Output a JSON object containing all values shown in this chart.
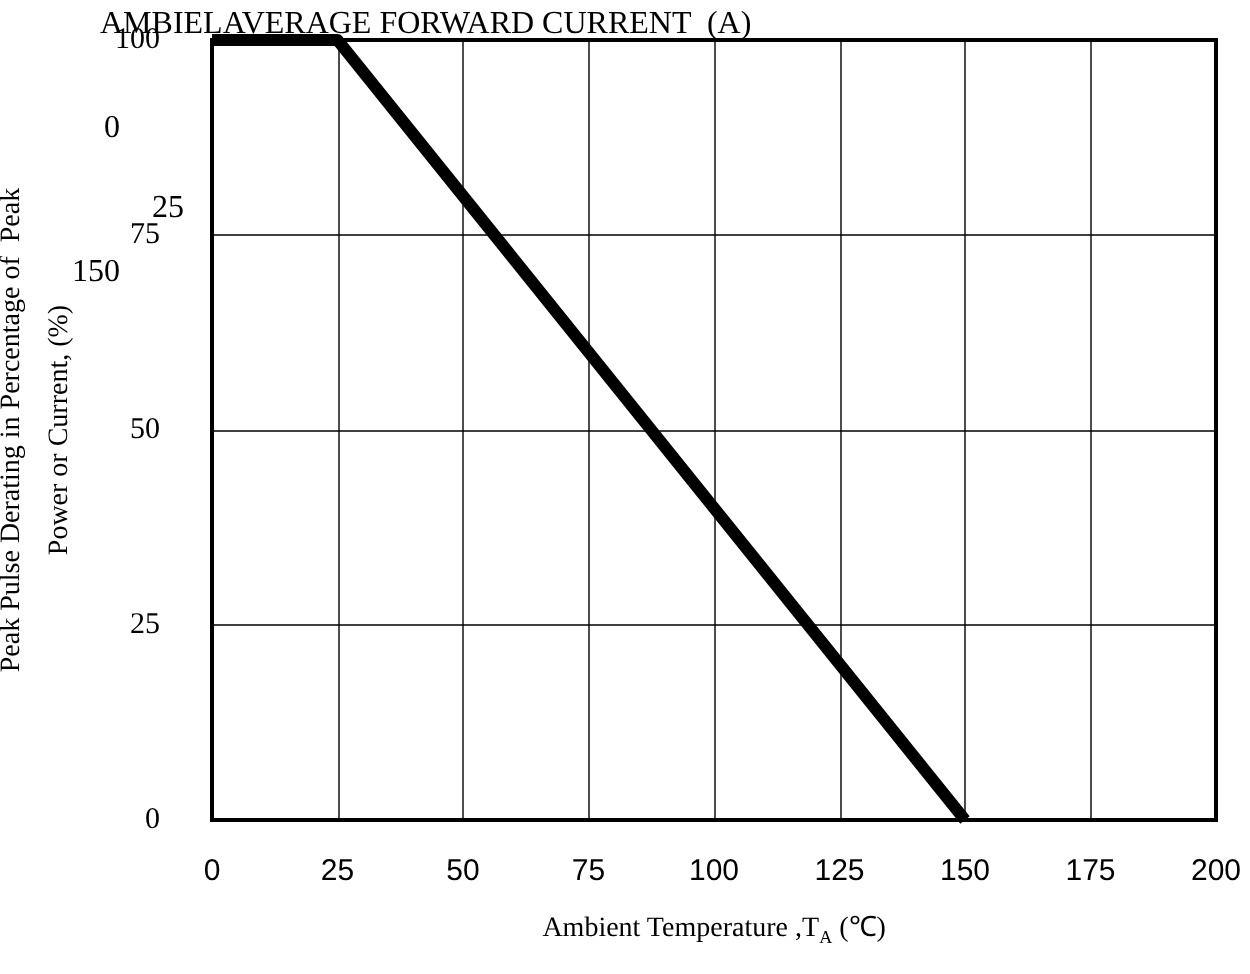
{
  "chart_data": {
    "type": "line",
    "title": "AMBIELAVERAGE FORWARD CURRENT  (A)",
    "xlabel": "Ambient Temperature ,T$_{A}$ (℃)",
    "ylabel": "Peak Pulse Derating in Percentage of  Peak\nPower or Current, (%)",
    "annotations": [
      "0",
      "25",
      "150"
    ],
    "x": [
      0,
      25,
      150
    ],
    "series": [
      {
        "color": "#000000",
        "values": [
          100,
          100,
          0
        ]
      }
    ],
    "xlim": [
      0,
      200
    ],
    "xticks": [
      0,
      25,
      50,
      75,
      100,
      125,
      150,
      175,
      200
    ],
    "ylim": [
      0,
      100
    ],
    "yticks": [
      0,
      25,
      50,
      75,
      100
    ],
    "grid": true,
    "marker": "none",
    "line_style": "solid"
  }
}
